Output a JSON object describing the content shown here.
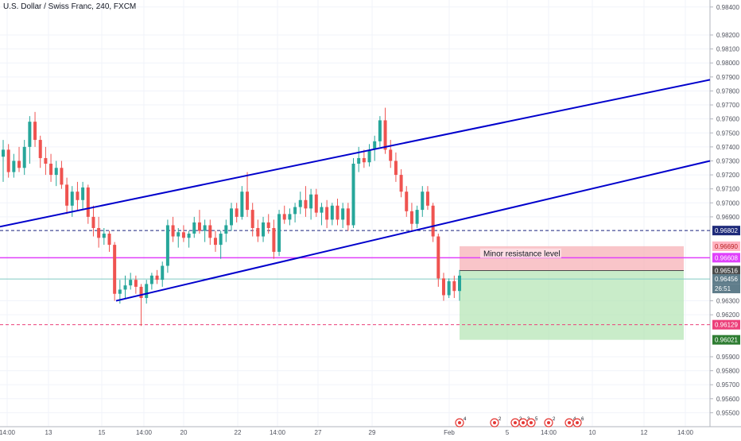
{
  "chart_title": "U.S. Dollar / Swiss Franc, 240, FXCM",
  "chart_data": {
    "type": "candlestick",
    "symbol": "U.S. Dollar / Swiss Franc",
    "interval": "240",
    "source": "FXCM",
    "ylim": [
      0.954,
      0.9845
    ],
    "y_ticks": [
      "0.98400",
      "0.98200",
      "0.98100",
      "0.98000",
      "0.97900",
      "0.97800",
      "0.97700",
      "0.97600",
      "0.97500",
      "0.97400",
      "0.97300",
      "0.97200",
      "0.97100",
      "0.97000",
      "0.96900",
      "0.96300",
      "0.96200",
      "0.95900",
      "0.95800",
      "0.95700",
      "0.95600",
      "0.95500"
    ],
    "x_ticks": [
      "14:00",
      "13",
      "15",
      "14:00",
      "20",
      "22",
      "14:00",
      "27",
      "29",
      "Feb",
      "5",
      "14:00",
      "10",
      "12",
      "14:00"
    ],
    "price_labels": [
      {
        "value": "0.96802",
        "color": "#1e2a7a",
        "text_color": "#ffffff"
      },
      {
        "value": "0.96690",
        "color": "#ffb3c1",
        "text_color": "#b71c1c"
      },
      {
        "value": "0.96608",
        "color": "#e040fb",
        "text_color": "#ffffff"
      },
      {
        "value": "0.96516",
        "color": "#4b4b4b",
        "text_color": "#ffffff"
      },
      {
        "value": "0.96456",
        "color": "#607d8b",
        "text_color": "#ffffff"
      },
      {
        "value": "26:51",
        "color": "#607d8b",
        "text_color": "#ffffff"
      },
      {
        "value": "0.96129",
        "color": "#ec407a",
        "text_color": "#ffffff"
      },
      {
        "value": "0.96021",
        "color": "#2e7d32",
        "text_color": "#ffffff"
      }
    ],
    "annotation": "Minor resistance level",
    "horizontal_lines": [
      {
        "price": 0.96802,
        "color": "#1a237e",
        "style": "dashed"
      },
      {
        "price": 0.96608,
        "color": "#e040fb",
        "style": "solid"
      },
      {
        "price": 0.96129,
        "color": "#ec407a",
        "style": "dashed"
      },
      {
        "price": 0.96456,
        "color": "#80cbc4",
        "style": "solid"
      }
    ],
    "channel_color": "#0000cc",
    "position_box": {
      "entry": 0.96516,
      "stop": 0.9669,
      "target": 0.96021
    },
    "event_badge_counts": [
      "4",
      "2",
      "2",
      "3",
      "5",
      "2",
      "4",
      "6"
    ],
    "colors": {
      "up": "#26a69a",
      "down": "#ef5350",
      "grid": "#f0f3fa",
      "axis_text": "#50535e"
    },
    "candles": [
      {
        "o": 0.9733,
        "h": 0.9745,
        "l": 0.9715,
        "c": 0.9738
      },
      {
        "o": 0.9738,
        "h": 0.9742,
        "l": 0.9718,
        "c": 0.9722
      },
      {
        "o": 0.9722,
        "h": 0.9735,
        "l": 0.9718,
        "c": 0.973
      },
      {
        "o": 0.973,
        "h": 0.974,
        "l": 0.9722,
        "c": 0.9725
      },
      {
        "o": 0.9725,
        "h": 0.9745,
        "l": 0.972,
        "c": 0.974
      },
      {
        "o": 0.974,
        "h": 0.9762,
        "l": 0.9728,
        "c": 0.9758
      },
      {
        "o": 0.9758,
        "h": 0.9765,
        "l": 0.974,
        "c": 0.9745
      },
      {
        "o": 0.9745,
        "h": 0.9748,
        "l": 0.9725,
        "c": 0.9732
      },
      {
        "o": 0.9732,
        "h": 0.974,
        "l": 0.972,
        "c": 0.9728
      },
      {
        "o": 0.9728,
        "h": 0.9735,
        "l": 0.9715,
        "c": 0.972
      },
      {
        "o": 0.972,
        "h": 0.973,
        "l": 0.9712,
        "c": 0.9725
      },
      {
        "o": 0.9725,
        "h": 0.973,
        "l": 0.971,
        "c": 0.9713
      },
      {
        "o": 0.9713,
        "h": 0.9718,
        "l": 0.9692,
        "c": 0.9698
      },
      {
        "o": 0.9698,
        "h": 0.9712,
        "l": 0.969,
        "c": 0.9708
      },
      {
        "o": 0.9708,
        "h": 0.9715,
        "l": 0.9695,
        "c": 0.9702
      },
      {
        "o": 0.9702,
        "h": 0.9715,
        "l": 0.9695,
        "c": 0.9711
      },
      {
        "o": 0.9711,
        "h": 0.9713,
        "l": 0.9685,
        "c": 0.969
      },
      {
        "o": 0.969,
        "h": 0.9698,
        "l": 0.9676,
        "c": 0.9682
      },
      {
        "o": 0.9682,
        "h": 0.969,
        "l": 0.9668,
        "c": 0.9675
      },
      {
        "o": 0.9675,
        "h": 0.9682,
        "l": 0.967,
        "c": 0.9678
      },
      {
        "o": 0.9678,
        "h": 0.968,
        "l": 0.9665,
        "c": 0.967
      },
      {
        "o": 0.967,
        "h": 0.9672,
        "l": 0.963,
        "c": 0.9635
      },
      {
        "o": 0.9635,
        "h": 0.9645,
        "l": 0.9628,
        "c": 0.9638
      },
      {
        "o": 0.9638,
        "h": 0.9648,
        "l": 0.9632,
        "c": 0.9641
      },
      {
        "o": 0.9641,
        "h": 0.965,
        "l": 0.9638,
        "c": 0.9645
      },
      {
        "o": 0.9645,
        "h": 0.9648,
        "l": 0.9635,
        "c": 0.964
      },
      {
        "o": 0.964,
        "h": 0.9642,
        "l": 0.9612,
        "c": 0.9632
      },
      {
        "o": 0.9632,
        "h": 0.9645,
        "l": 0.9628,
        "c": 0.9642
      },
      {
        "o": 0.9642,
        "h": 0.965,
        "l": 0.9638,
        "c": 0.9648
      },
      {
        "o": 0.9648,
        "h": 0.9652,
        "l": 0.9642,
        "c": 0.9645
      },
      {
        "o": 0.9645,
        "h": 0.9658,
        "l": 0.964,
        "c": 0.9655
      },
      {
        "o": 0.9655,
        "h": 0.9688,
        "l": 0.965,
        "c": 0.9684
      },
      {
        "o": 0.9684,
        "h": 0.969,
        "l": 0.9672,
        "c": 0.9676
      },
      {
        "o": 0.9676,
        "h": 0.9682,
        "l": 0.9668,
        "c": 0.9679
      },
      {
        "o": 0.9679,
        "h": 0.9684,
        "l": 0.9672,
        "c": 0.9675
      },
      {
        "o": 0.9675,
        "h": 0.968,
        "l": 0.9668,
        "c": 0.9678
      },
      {
        "o": 0.9678,
        "h": 0.969,
        "l": 0.9675,
        "c": 0.9686
      },
      {
        "o": 0.9686,
        "h": 0.9695,
        "l": 0.9678,
        "c": 0.968
      },
      {
        "o": 0.968,
        "h": 0.9688,
        "l": 0.9672,
        "c": 0.9684
      },
      {
        "o": 0.9684,
        "h": 0.9688,
        "l": 0.967,
        "c": 0.9675
      },
      {
        "o": 0.9675,
        "h": 0.968,
        "l": 0.9665,
        "c": 0.967
      },
      {
        "o": 0.967,
        "h": 0.968,
        "l": 0.966,
        "c": 0.9678
      },
      {
        "o": 0.9678,
        "h": 0.9688,
        "l": 0.9672,
        "c": 0.9684
      },
      {
        "o": 0.9684,
        "h": 0.97,
        "l": 0.968,
        "c": 0.9696
      },
      {
        "o": 0.9696,
        "h": 0.97,
        "l": 0.9686,
        "c": 0.969
      },
      {
        "o": 0.969,
        "h": 0.9712,
        "l": 0.9688,
        "c": 0.9708
      },
      {
        "o": 0.9708,
        "h": 0.9722,
        "l": 0.969,
        "c": 0.9695
      },
      {
        "o": 0.9695,
        "h": 0.97,
        "l": 0.9676,
        "c": 0.9682
      },
      {
        "o": 0.9682,
        "h": 0.9688,
        "l": 0.9672,
        "c": 0.9676
      },
      {
        "o": 0.9676,
        "h": 0.969,
        "l": 0.9672,
        "c": 0.9686
      },
      {
        "o": 0.9686,
        "h": 0.9692,
        "l": 0.9678,
        "c": 0.9682
      },
      {
        "o": 0.9682,
        "h": 0.9688,
        "l": 0.966,
        "c": 0.9665
      },
      {
        "o": 0.9665,
        "h": 0.9695,
        "l": 0.9662,
        "c": 0.9692
      },
      {
        "o": 0.9692,
        "h": 0.9698,
        "l": 0.9685,
        "c": 0.9688
      },
      {
        "o": 0.9688,
        "h": 0.9696,
        "l": 0.9684,
        "c": 0.9692
      },
      {
        "o": 0.9692,
        "h": 0.97,
        "l": 0.9686,
        "c": 0.9697
      },
      {
        "o": 0.9697,
        "h": 0.9708,
        "l": 0.9692,
        "c": 0.9702
      },
      {
        "o": 0.9702,
        "h": 0.9712,
        "l": 0.969,
        "c": 0.9696
      },
      {
        "o": 0.9696,
        "h": 0.971,
        "l": 0.9688,
        "c": 0.9706
      },
      {
        "o": 0.9706,
        "h": 0.971,
        "l": 0.969,
        "c": 0.9693
      },
      {
        "o": 0.9693,
        "h": 0.97,
        "l": 0.9684,
        "c": 0.9697
      },
      {
        "o": 0.9697,
        "h": 0.9702,
        "l": 0.9682,
        "c": 0.9688
      },
      {
        "o": 0.9688,
        "h": 0.97,
        "l": 0.9684,
        "c": 0.9698
      },
      {
        "o": 0.9698,
        "h": 0.9703,
        "l": 0.9684,
        "c": 0.9688
      },
      {
        "o": 0.9688,
        "h": 0.97,
        "l": 0.9682,
        "c": 0.9696
      },
      {
        "o": 0.9696,
        "h": 0.97,
        "l": 0.968,
        "c": 0.9684
      },
      {
        "o": 0.9684,
        "h": 0.9732,
        "l": 0.9682,
        "c": 0.9728
      },
      {
        "o": 0.9728,
        "h": 0.974,
        "l": 0.9722,
        "c": 0.9732
      },
      {
        "o": 0.9732,
        "h": 0.9738,
        "l": 0.9725,
        "c": 0.9729
      },
      {
        "o": 0.9729,
        "h": 0.9742,
        "l": 0.9726,
        "c": 0.9738
      },
      {
        "o": 0.9738,
        "h": 0.9748,
        "l": 0.973,
        "c": 0.9744
      },
      {
        "o": 0.9744,
        "h": 0.9762,
        "l": 0.974,
        "c": 0.9759
      },
      {
        "o": 0.9759,
        "h": 0.9768,
        "l": 0.9735,
        "c": 0.9738
      },
      {
        "o": 0.9738,
        "h": 0.9745,
        "l": 0.9725,
        "c": 0.973
      },
      {
        "o": 0.973,
        "h": 0.9736,
        "l": 0.9715,
        "c": 0.972
      },
      {
        "o": 0.972,
        "h": 0.9724,
        "l": 0.9704,
        "c": 0.9708
      },
      {
        "o": 0.9708,
        "h": 0.9712,
        "l": 0.969,
        "c": 0.9694
      },
      {
        "o": 0.9694,
        "h": 0.97,
        "l": 0.968,
        "c": 0.9685
      },
      {
        "o": 0.9685,
        "h": 0.9698,
        "l": 0.9682,
        "c": 0.9695
      },
      {
        "o": 0.9695,
        "h": 0.9712,
        "l": 0.969,
        "c": 0.9708
      },
      {
        "o": 0.9708,
        "h": 0.9712,
        "l": 0.9695,
        "c": 0.9698
      },
      {
        "o": 0.9698,
        "h": 0.97,
        "l": 0.9672,
        "c": 0.9676
      },
      {
        "o": 0.9676,
        "h": 0.9678,
        "l": 0.964,
        "c": 0.9646
      },
      {
        "o": 0.9646,
        "h": 0.965,
        "l": 0.963,
        "c": 0.9634
      },
      {
        "o": 0.9634,
        "h": 0.9646,
        "l": 0.9632,
        "c": 0.9644
      },
      {
        "o": 0.9644,
        "h": 0.9648,
        "l": 0.9632,
        "c": 0.9637
      },
      {
        "o": 0.9637,
        "h": 0.9652,
        "l": 0.963,
        "c": 0.9648
      }
    ]
  }
}
